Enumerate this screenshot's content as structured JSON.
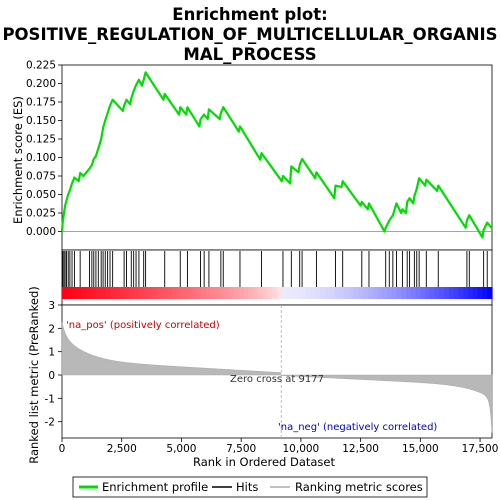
{
  "chart_data": {
    "type": "line",
    "title_line1": "Enrichment plot:",
    "title_line2": "POSITIVE_REGULATION_OF_MULTICELLULAR_ORGANIS",
    "title_line3": "MAL_PROCESS",
    "xlabel": "Rank in Ordered Dataset",
    "ylabel_top": "Enrichment score (ES)",
    "ylabel_bottom": "Ranked list metric (PreRanked)",
    "xlim": [
      0,
      18000
    ],
    "es_ylim": [
      -0.025,
      0.225
    ],
    "metric_ylim": [
      -2.7,
      3.0
    ],
    "x_ticks": [
      0,
      2500,
      5000,
      7500,
      10000,
      12500,
      15000,
      17500
    ],
    "x_tick_labels": [
      "0",
      "2,500",
      "5,000",
      "7,500",
      "10,000",
      "12,500",
      "15,000",
      "17,500"
    ],
    "es_ticks": [
      0.0,
      0.025,
      0.05,
      0.075,
      0.1,
      0.125,
      0.15,
      0.175,
      0.2,
      0.225
    ],
    "es_tick_labels": [
      "0.000",
      "0.025",
      "0.050",
      "0.075",
      "0.100",
      "0.125",
      "0.150",
      "0.175",
      "0.200",
      "0.225"
    ],
    "metric_ticks": [
      3,
      2,
      1,
      0,
      -1,
      -2
    ],
    "metric_tick_labels": [
      "3",
      "2",
      "1",
      "0",
      "-1",
      "-2"
    ],
    "zero_cross_rank": 9177,
    "zero_cross_label": "Zero cross at 9177",
    "pos_label": "'na_pos' (positively correlated)",
    "neg_label": "'na_neg' (negatively correlated)",
    "legend": [
      "Enrichment profile",
      "Hits",
      "Ranking metric scores"
    ],
    "colors": {
      "es": "#00dd00",
      "hits": "#000000",
      "metric": "#aaaaaa",
      "pos": "#ff0000",
      "neg": "#0000ff"
    },
    "hits": [
      30,
      80,
      130,
      190,
      260,
      330,
      420,
      520,
      760,
      1150,
      1250,
      1330,
      1420,
      1520,
      1640,
      1720,
      1810,
      1910,
      2010,
      2120,
      2600,
      2700,
      2900,
      3000,
      3100,
      3220,
      3420,
      3500,
      4300,
      4950,
      5250,
      5800,
      5950,
      6150,
      6650,
      6750,
      7450,
      8350,
      9250,
      9600,
      9950,
      10050,
      10650,
      11450,
      11750,
      12550,
      12850,
      13550,
      13700,
      13850,
      14000,
      14250,
      14450,
      14550,
      14750,
      14850,
      14950,
      15250,
      15750,
      16950,
      17050,
      17650,
      17800
    ],
    "es_profile": [
      [
        0,
        0.0
      ],
      [
        30,
        0.012
      ],
      [
        80,
        0.024
      ],
      [
        130,
        0.035
      ],
      [
        190,
        0.042
      ],
      [
        260,
        0.05
      ],
      [
        330,
        0.056
      ],
      [
        420,
        0.065
      ],
      [
        520,
        0.073
      ],
      [
        700,
        0.068
      ],
      [
        760,
        0.079
      ],
      [
        900,
        0.075
      ],
      [
        1150,
        0.085
      ],
      [
        1250,
        0.09
      ],
      [
        1330,
        0.098
      ],
      [
        1420,
        0.102
      ],
      [
        1520,
        0.112
      ],
      [
        1640,
        0.125
      ],
      [
        1720,
        0.14
      ],
      [
        1810,
        0.15
      ],
      [
        1910,
        0.16
      ],
      [
        2010,
        0.17
      ],
      [
        2120,
        0.178
      ],
      [
        2550,
        0.163
      ],
      [
        2600,
        0.17
      ],
      [
        2700,
        0.178
      ],
      [
        2850,
        0.172
      ],
      [
        2900,
        0.18
      ],
      [
        3000,
        0.19
      ],
      [
        3100,
        0.198
      ],
      [
        3220,
        0.205
      ],
      [
        3350,
        0.197
      ],
      [
        3420,
        0.205
      ],
      [
        3500,
        0.215
      ],
      [
        4250,
        0.178
      ],
      [
        4300,
        0.186
      ],
      [
        4900,
        0.158
      ],
      [
        4950,
        0.168
      ],
      [
        5200,
        0.158
      ],
      [
        5250,
        0.168
      ],
      [
        5750,
        0.142
      ],
      [
        5800,
        0.152
      ],
      [
        5950,
        0.158
      ],
      [
        6100,
        0.152
      ],
      [
        6150,
        0.165
      ],
      [
        6600,
        0.152
      ],
      [
        6650,
        0.16
      ],
      [
        6750,
        0.168
      ],
      [
        7400,
        0.135
      ],
      [
        7450,
        0.142
      ],
      [
        8300,
        0.097
      ],
      [
        8350,
        0.106
      ],
      [
        9200,
        0.068
      ],
      [
        9250,
        0.075
      ],
      [
        9550,
        0.065
      ],
      [
        9600,
        0.088
      ],
      [
        9900,
        0.08
      ],
      [
        9950,
        0.09
      ],
      [
        10050,
        0.098
      ],
      [
        10600,
        0.072
      ],
      [
        10650,
        0.08
      ],
      [
        11400,
        0.045
      ],
      [
        11450,
        0.062
      ],
      [
        11700,
        0.06
      ],
      [
        11750,
        0.068
      ],
      [
        12500,
        0.035
      ],
      [
        12550,
        0.04
      ],
      [
        12800,
        0.03
      ],
      [
        12850,
        0.038
      ],
      [
        13500,
        0.0
      ],
      [
        13550,
        0.005
      ],
      [
        13700,
        0.015
      ],
      [
        13850,
        0.022
      ],
      [
        14000,
        0.038
      ],
      [
        14200,
        0.025
      ],
      [
        14250,
        0.03
      ],
      [
        14400,
        0.025
      ],
      [
        14450,
        0.04
      ],
      [
        14550,
        0.045
      ],
      [
        14700,
        0.038
      ],
      [
        14750,
        0.048
      ],
      [
        14850,
        0.058
      ],
      [
        14950,
        0.072
      ],
      [
        15200,
        0.062
      ],
      [
        15250,
        0.07
      ],
      [
        15700,
        0.055
      ],
      [
        15750,
        0.062
      ],
      [
        16900,
        0.005
      ],
      [
        16950,
        0.015
      ],
      [
        17050,
        0.022
      ],
      [
        17600,
        -0.008
      ],
      [
        17650,
        0.002
      ],
      [
        17800,
        0.012
      ],
      [
        17980,
        0.005
      ]
    ]
  }
}
